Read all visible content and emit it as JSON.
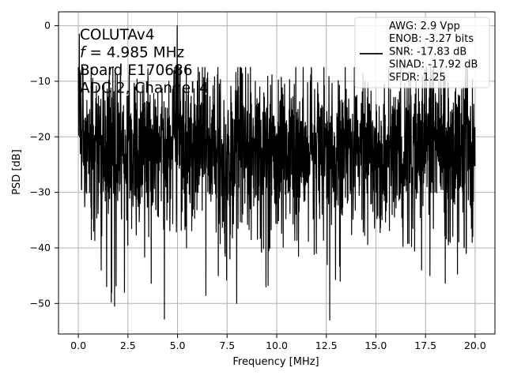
{
  "chart_data": {
    "type": "line",
    "xlabel": "Frequency [MHz]",
    "ylabel": "PSD [dB]",
    "xlim": [
      -1.0,
      21.0
    ],
    "ylim": [
      -55.5,
      2.5
    ],
    "xticks": [
      0.0,
      2.5,
      5.0,
      7.5,
      10.0,
      12.5,
      15.0,
      17.5,
      20.0
    ],
    "xtick_labels": [
      "0.0",
      "2.5",
      "5.0",
      "7.5",
      "10.0",
      "12.5",
      "15.0",
      "17.5",
      "20.0"
    ],
    "yticks": [
      0,
      -10,
      -20,
      -30,
      -40,
      -50
    ],
    "ytick_labels": [
      "0",
      "−10",
      "−20",
      "−30",
      "−40",
      "−50"
    ],
    "grid": true,
    "legend_position": "top-right",
    "annotation_lines": [
      "COLUTAv4",
      "f = 4.985 MHz",
      "Board E170686",
      "ADC 2, Channel 4"
    ],
    "legend_lines": [
      "AWG: 2.9 Vpp",
      "ENOB: -3.27 bits",
      "SNR: -17.83 dB",
      "SINAD: -17.92 dB",
      "SFDR: 1.25"
    ],
    "series": [
      {
        "color": "#000000",
        "x_start": 0.0,
        "x_end": 20.0,
        "baseline_db": -21.5,
        "spread_db": 6.5,
        "peak_x": 4.985,
        "peak_y": 0.0,
        "notable_dips": [
          {
            "x": 0.65,
            "y": -38.5
          },
          {
            "x": 1.15,
            "y": -44.0
          },
          {
            "x": 1.68,
            "y": -48.0
          },
          {
            "x": 1.83,
            "y": -50.5
          },
          {
            "x": 3.55,
            "y": -38.0
          },
          {
            "x": 5.45,
            "y": -40.0
          },
          {
            "x": 7.05,
            "y": -45.0
          },
          {
            "x": 7.98,
            "y": -50.0
          },
          {
            "x": 9.6,
            "y": -40.5
          },
          {
            "x": 11.1,
            "y": -41.5
          },
          {
            "x": 12.0,
            "y": -41.0
          },
          {
            "x": 12.55,
            "y": -43.0
          },
          {
            "x": 12.67,
            "y": -53.0
          },
          {
            "x": 13.2,
            "y": -46.0
          },
          {
            "x": 17.3,
            "y": -44.0
          },
          {
            "x": 17.72,
            "y": -45.0
          },
          {
            "x": 18.75,
            "y": -39.0
          },
          {
            "x": 19.55,
            "y": -41.0
          },
          {
            "x": 19.85,
            "y": -39.0
          }
        ],
        "notable_peaks": [
          {
            "x": 0.05,
            "y": -1.5
          },
          {
            "x": 0.12,
            "y": -8.5
          },
          {
            "x": 4.985,
            "y": 0.0
          },
          {
            "x": 5.03,
            "y": -7.0
          },
          {
            "x": 5.55,
            "y": -11.0
          },
          {
            "x": 6.0,
            "y": -10.0
          },
          {
            "x": 7.1,
            "y": -10.5
          },
          {
            "x": 10.4,
            "y": -10.5
          },
          {
            "x": 12.4,
            "y": -10.8
          },
          {
            "x": 14.6,
            "y": -10.2
          },
          {
            "x": 17.7,
            "y": -10.0
          },
          {
            "x": 19.5,
            "y": -10.5
          }
        ]
      }
    ]
  }
}
